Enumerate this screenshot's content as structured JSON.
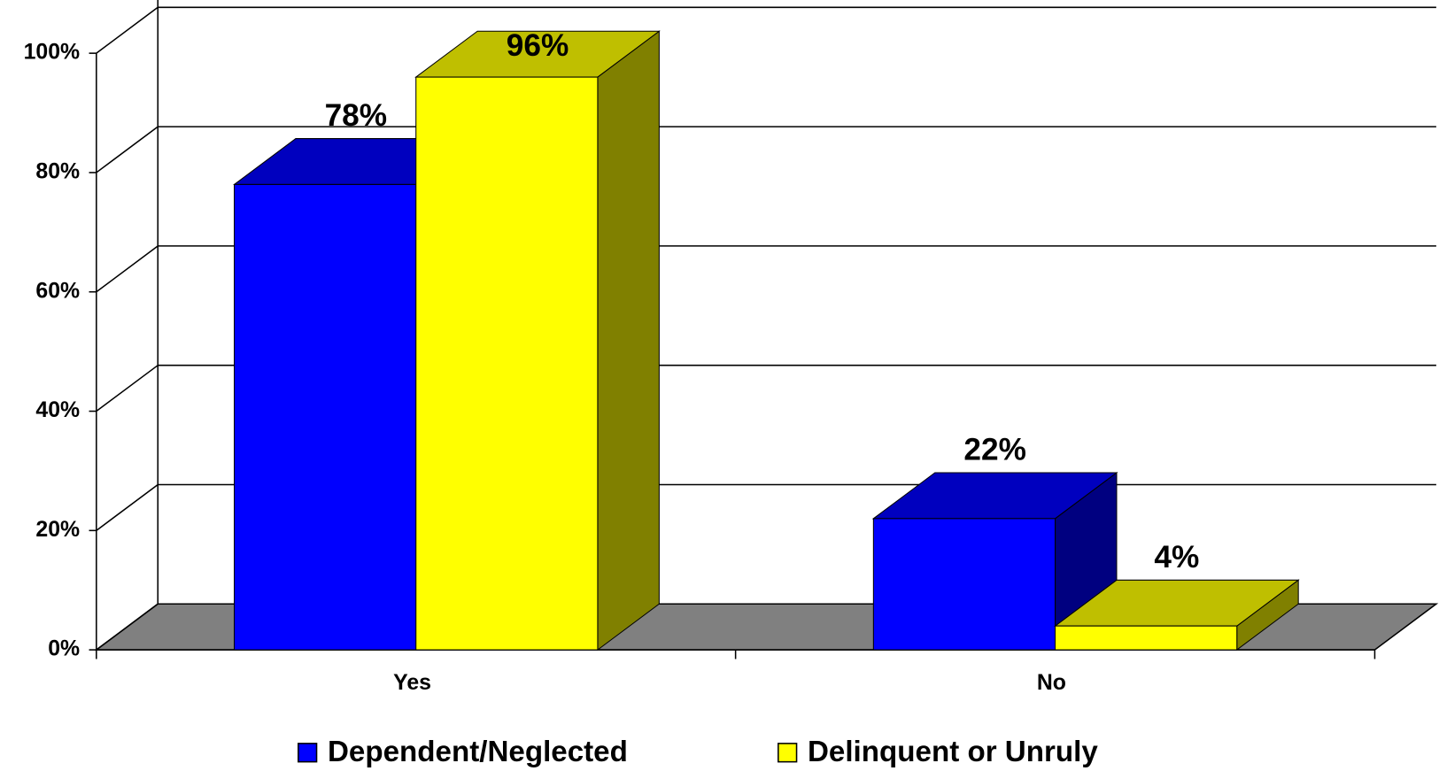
{
  "chart_data": {
    "type": "bar3d",
    "categories": [
      "Yes",
      "No"
    ],
    "series": [
      {
        "name": "Dependent/Neglected",
        "color": "#0000ff",
        "values": [
          78,
          22
        ],
        "value_labels": [
          "78%",
          "22%"
        ]
      },
      {
        "name": "Delinquent or Unruly",
        "color": "#ffff00",
        "values": [
          96,
          4
        ],
        "value_labels": [
          "96%",
          "4%"
        ]
      }
    ],
    "ylim": [
      0,
      100
    ],
    "yticks": [
      {
        "value": 0,
        "label": "0%"
      },
      {
        "value": 20,
        "label": "20%"
      },
      {
        "value": 40,
        "label": "40%"
      },
      {
        "value": 60,
        "label": "60%"
      },
      {
        "value": 80,
        "label": "80%"
      },
      {
        "value": 100,
        "label": "100%"
      }
    ],
    "grid": true,
    "legend": "bottom"
  }
}
